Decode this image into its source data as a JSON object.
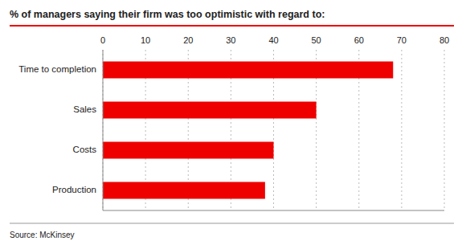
{
  "chart_data": {
    "type": "bar",
    "orientation": "horizontal",
    "title": "% of managers saying their firm was too optimistic with regard to:",
    "categories": [
      "Production",
      "Costs",
      "Sales",
      "Time to completion"
    ],
    "values": [
      38,
      40,
      50,
      68
    ],
    "color": "#ee0000",
    "xlim": [
      0,
      80
    ],
    "xticks": [
      0,
      10,
      20,
      30,
      40,
      50,
      60,
      70,
      80
    ],
    "grid": true,
    "source": "Source: McKinsey"
  }
}
